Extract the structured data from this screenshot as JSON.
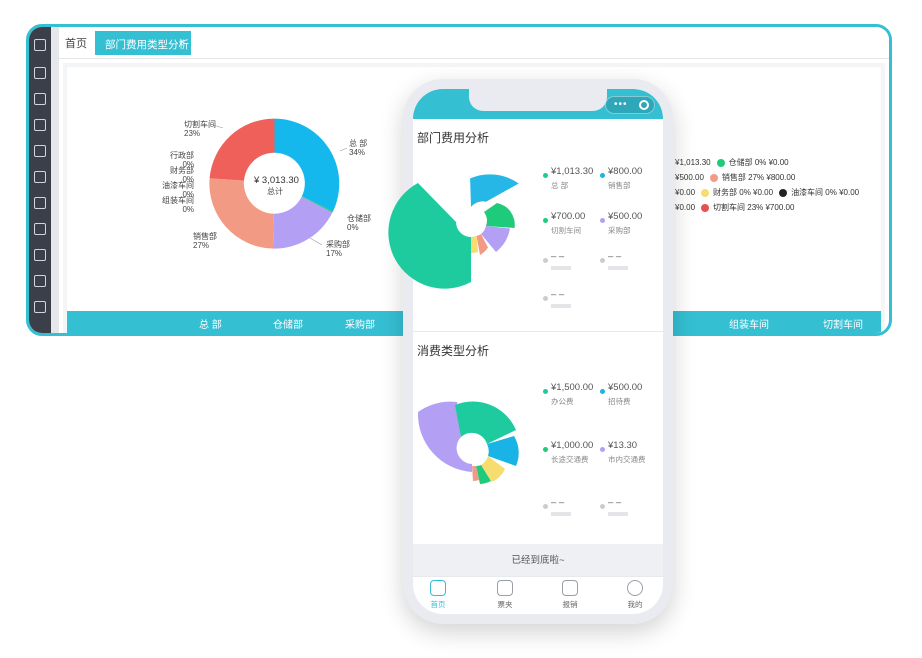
{
  "desktop": {
    "tabs": {
      "home": "首页",
      "active": "部门费用类型分析",
      "close": "×"
    },
    "donut": {
      "center_value": "¥ 3,013.30",
      "center_label": "总计",
      "labels": [
        {
          "name": "总 部",
          "pct": "34%"
        },
        {
          "name": "仓储部",
          "pct": "0%"
        },
        {
          "name": "采购部",
          "pct": "17%"
        },
        {
          "name": "销售部",
          "pct": "27%"
        },
        {
          "name": "组装车间",
          "pct": "0%"
        },
        {
          "name": "油漆车间",
          "pct": "0%"
        },
        {
          "name": "财务部",
          "pct": "0%"
        },
        {
          "name": "行政部",
          "pct": "0%"
        },
        {
          "name": "切割车间",
          "pct": "23%"
        }
      ]
    },
    "legend": {
      "row1": [
        {
          "text": "¥1,013.30",
          "dot": ""
        },
        {
          "text": "仓储部 0%  ¥0.00",
          "dot": "#1ecb7a"
        }
      ],
      "row2": [
        {
          "text": "¥500.00",
          "dot": ""
        },
        {
          "text": "销售部 27%  ¥800.00",
          "dot": "#f39a85"
        }
      ],
      "row3": [
        {
          "text": "¥0.00",
          "dot": ""
        },
        {
          "text": "财务部 0%  ¥0.00",
          "dot": "#f7dc6f"
        },
        {
          "text": "油漆车间 0%  ¥0.00",
          "dot": "#222222"
        }
      ],
      "row4": [
        {
          "text": "¥0.00",
          "dot": ""
        },
        {
          "text": "切割车间 23%  ¥700.00",
          "dot": "#e8504d"
        }
      ]
    },
    "bottom_bar": [
      "总 部",
      "仓储部",
      "采购部",
      "组装车间",
      "切割车间"
    ]
  },
  "phone": {
    "section1": {
      "title": "部门费用分析",
      "stats": [
        {
          "value": "¥1,013.30",
          "name": "总 部",
          "color": "#1ecb9f"
        },
        {
          "value": "¥800.00",
          "name": "销售部",
          "color": "#1ab3e6"
        },
        {
          "value": "¥700.00",
          "name": "切割车间",
          "color": "#1ecb7a"
        },
        {
          "value": "¥500.00",
          "name": "采购部",
          "color": "#b3a0f5"
        },
        {
          "value": "– –",
          "name": "",
          "color": "#cccccc"
        },
        {
          "value": "– –",
          "name": "",
          "color": "#cccccc"
        },
        {
          "value": "– –",
          "name": "",
          "color": "#cccccc"
        }
      ]
    },
    "section2": {
      "title": "消费类型分析",
      "stats": [
        {
          "value": "¥1,500.00",
          "name": "办公费",
          "color": "#1ecb9f"
        },
        {
          "value": "¥500.00",
          "name": "招待费",
          "color": "#1ab3e6"
        },
        {
          "value": "¥1,000.00",
          "name": "长途交通费",
          "color": "#1ecb7a"
        },
        {
          "value": "¥13.30",
          "name": "市内交通费",
          "color": "#b3a0f5"
        },
        {
          "value": "– –",
          "name": "",
          "color": "#cccccc"
        },
        {
          "value": "– –",
          "name": "",
          "color": "#cccccc"
        }
      ]
    },
    "end_text": "已经到底啦~",
    "tabs": [
      "首页",
      "票夹",
      "报销",
      "我的"
    ]
  },
  "colors": {
    "accent": "#35bfd3",
    "teal": "#1ecb9f",
    "blue": "#1ab3e6",
    "purple": "#b3a0f5",
    "salmon": "#f39a85",
    "red": "#f0605a",
    "yellow": "#f7dc6f",
    "green": "#1ecb7a",
    "sidebar": "#3b3f4a"
  }
}
